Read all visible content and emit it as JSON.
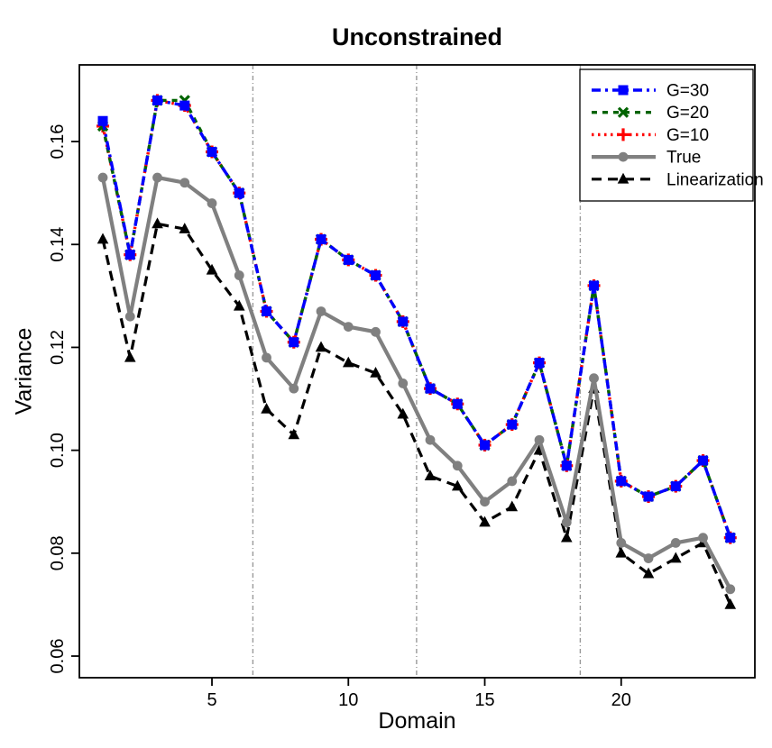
{
  "chart_data": {
    "type": "line",
    "title": "Unconstrained",
    "xlabel": "Domain",
    "ylabel": "Variance",
    "x": [
      1,
      2,
      3,
      4,
      5,
      6,
      7,
      8,
      9,
      10,
      11,
      12,
      13,
      14,
      15,
      16,
      17,
      18,
      19,
      20,
      21,
      22,
      23,
      24
    ],
    "x_ticks": [
      5,
      10,
      15,
      20
    ],
    "y_ticks": [
      "0.06",
      "0.08",
      "0.10",
      "0.12",
      "0.14",
      "0.16"
    ],
    "xlim": [
      0.14,
      24.9
    ],
    "ylim": [
      0.0558,
      0.1749
    ],
    "grid": "vertical dash-dot separators only",
    "separators_x": [
      6.5,
      12.5,
      18.5
    ],
    "legend_position": "top-right",
    "series": [
      {
        "name": "G=30",
        "color": "#0000ff",
        "marker": "square",
        "line": "dashdot",
        "values": [
          0.164,
          0.138,
          0.168,
          0.167,
          0.158,
          0.15,
          0.127,
          0.121,
          0.141,
          0.137,
          0.134,
          0.125,
          0.112,
          0.109,
          0.101,
          0.105,
          0.117,
          0.097,
          0.132,
          0.094,
          0.091,
          0.093,
          0.098,
          0.083
        ]
      },
      {
        "name": "G=20",
        "color": "#006400",
        "marker": "x",
        "line": "dashed",
        "values": [
          0.163,
          0.138,
          0.168,
          0.168,
          0.158,
          0.15,
          0.127,
          0.121,
          0.141,
          0.137,
          0.134,
          0.125,
          0.112,
          0.109,
          0.101,
          0.105,
          0.117,
          0.097,
          0.132,
          0.094,
          0.091,
          0.093,
          0.098,
          0.083
        ]
      },
      {
        "name": "G=10",
        "color": "#ff0000",
        "marker": "plus",
        "line": "dotted",
        "values": [
          0.163,
          0.138,
          0.168,
          0.167,
          0.158,
          0.15,
          0.127,
          0.121,
          0.141,
          0.137,
          0.134,
          0.125,
          0.112,
          0.109,
          0.101,
          0.105,
          0.117,
          0.097,
          0.132,
          0.094,
          0.091,
          0.093,
          0.098,
          0.083
        ]
      },
      {
        "name": "True",
        "color": "#808080",
        "marker": "circle",
        "line": "solid",
        "values": [
          0.153,
          0.126,
          0.153,
          0.152,
          0.148,
          0.134,
          0.118,
          0.112,
          0.127,
          0.124,
          0.123,
          0.113,
          0.102,
          0.097,
          0.09,
          0.094,
          0.102,
          0.086,
          0.114,
          0.082,
          0.079,
          0.082,
          0.083,
          0.073
        ]
      },
      {
        "name": "Linearization",
        "color": "#000000",
        "marker": "triangle",
        "line": "longdash",
        "values": [
          0.141,
          0.118,
          0.144,
          0.143,
          0.135,
          0.128,
          0.108,
          0.103,
          0.12,
          0.117,
          0.115,
          0.107,
          0.095,
          0.093,
          0.086,
          0.089,
          0.1,
          0.083,
          0.112,
          0.08,
          0.076,
          0.079,
          0.082,
          0.07
        ]
      }
    ]
  },
  "colors": {
    "background": "#ffffff",
    "axis": "#000000",
    "separator": "#999999",
    "legend_border": "#000000"
  }
}
